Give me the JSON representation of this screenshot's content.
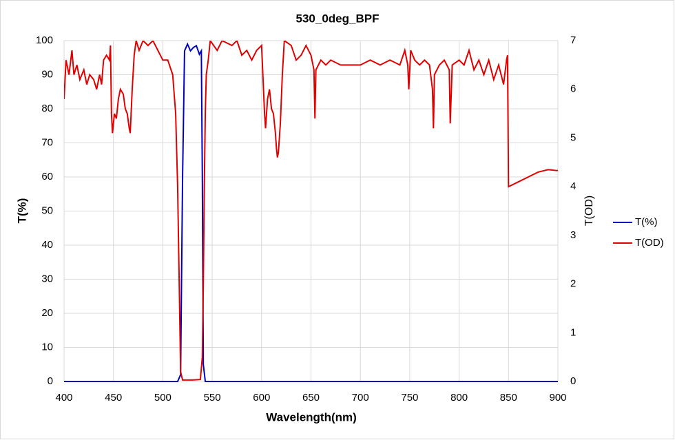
{
  "chart_data": {
    "type": "line",
    "title": "530_0deg_BPF",
    "x_label": "Wavelength(nm)",
    "y_label": "T(%)",
    "y2_label": "T(OD)",
    "xlim": [
      400,
      900
    ],
    "xticks": [
      400,
      450,
      500,
      550,
      600,
      650,
      700,
      750,
      800,
      850,
      900
    ],
    "ylim": [
      0,
      100
    ],
    "yticks": [
      0,
      10,
      20,
      30,
      40,
      50,
      60,
      70,
      80,
      90,
      100
    ],
    "y2lim": [
      0,
      7
    ],
    "y2ticks": [
      0,
      1,
      2,
      3,
      4,
      5,
      6,
      7
    ],
    "grid": true,
    "legend": "right",
    "series": [
      {
        "name": "T(%)",
        "color": "#0000c0",
        "axis": "y",
        "x": [
          400,
          515,
          518,
          520,
          522,
          525,
          528,
          531,
          534,
          537,
          539,
          540,
          541,
          543,
          900
        ],
        "values": [
          0,
          0,
          2,
          60,
          97,
          99,
          97,
          98,
          98.5,
          96,
          97,
          60,
          5,
          0,
          0
        ]
      },
      {
        "name": "T(OD)",
        "color": "#e00000",
        "axis": "y2",
        "x": [
          400,
          402,
          405,
          408,
          410,
          413,
          416,
          420,
          423,
          426,
          430,
          433,
          436,
          438,
          440,
          443,
          446,
          447,
          448,
          449,
          451,
          453,
          455,
          457,
          460,
          462,
          464,
          466,
          467,
          469,
          471,
          473,
          476,
          480,
          485,
          490,
          495,
          500,
          505,
          510,
          513,
          515,
          517,
          518,
          520,
          530,
          538,
          540,
          541,
          542,
          543,
          544,
          546,
          548,
          555,
          560,
          570,
          575,
          580,
          585,
          590,
          595,
          600,
          603,
          604,
          606,
          608,
          610,
          612,
          614,
          615,
          616,
          617,
          619,
          621,
          623,
          630,
          635,
          640,
          645,
          650,
          653,
          654,
          655,
          660,
          665,
          670,
          680,
          690,
          700,
          710,
          720,
          730,
          740,
          745,
          748,
          749,
          751,
          755,
          760,
          765,
          770,
          773,
          774,
          775,
          780,
          785,
          790,
          791,
          793,
          800,
          805,
          810,
          815,
          820,
          825,
          830,
          835,
          840,
          845,
          848,
          849,
          850,
          860,
          870,
          880,
          890,
          900
        ],
        "values": [
          5.8,
          6.6,
          6.3,
          6.8,
          6.3,
          6.5,
          6.2,
          6.4,
          6.1,
          6.3,
          6.2,
          6.0,
          6.3,
          6.1,
          6.6,
          6.7,
          6.6,
          6.9,
          5.5,
          5.1,
          5.5,
          5.4,
          5.8,
          6.0,
          5.9,
          5.6,
          5.5,
          5.2,
          5.1,
          6.0,
          6.7,
          7.0,
          6.8,
          7.0,
          6.9,
          7.0,
          6.8,
          6.6,
          6.6,
          6.3,
          5.5,
          4.0,
          1.5,
          0.2,
          0.03,
          0.03,
          0.04,
          0.5,
          2.0,
          4.0,
          5.5,
          6.3,
          6.6,
          7.0,
          6.8,
          7.0,
          6.9,
          7.0,
          6.7,
          6.8,
          6.6,
          6.8,
          6.9,
          5.5,
          5.2,
          5.8,
          6.0,
          5.6,
          5.5,
          5.1,
          4.8,
          4.6,
          4.7,
          5.3,
          6.3,
          7.0,
          6.9,
          6.6,
          6.7,
          6.9,
          6.7,
          6.4,
          5.4,
          6.4,
          6.6,
          6.5,
          6.6,
          6.5,
          6.5,
          6.5,
          6.6,
          6.5,
          6.6,
          6.5,
          6.8,
          6.5,
          6.0,
          6.8,
          6.6,
          6.5,
          6.6,
          6.5,
          6.0,
          5.2,
          6.3,
          6.5,
          6.6,
          6.4,
          5.3,
          6.5,
          6.6,
          6.5,
          6.8,
          6.4,
          6.6,
          6.3,
          6.6,
          6.2,
          6.5,
          6.1,
          6.6,
          6.7,
          4.0,
          4.1,
          4.2,
          4.3,
          4.35,
          4.33
        ]
      }
    ]
  }
}
